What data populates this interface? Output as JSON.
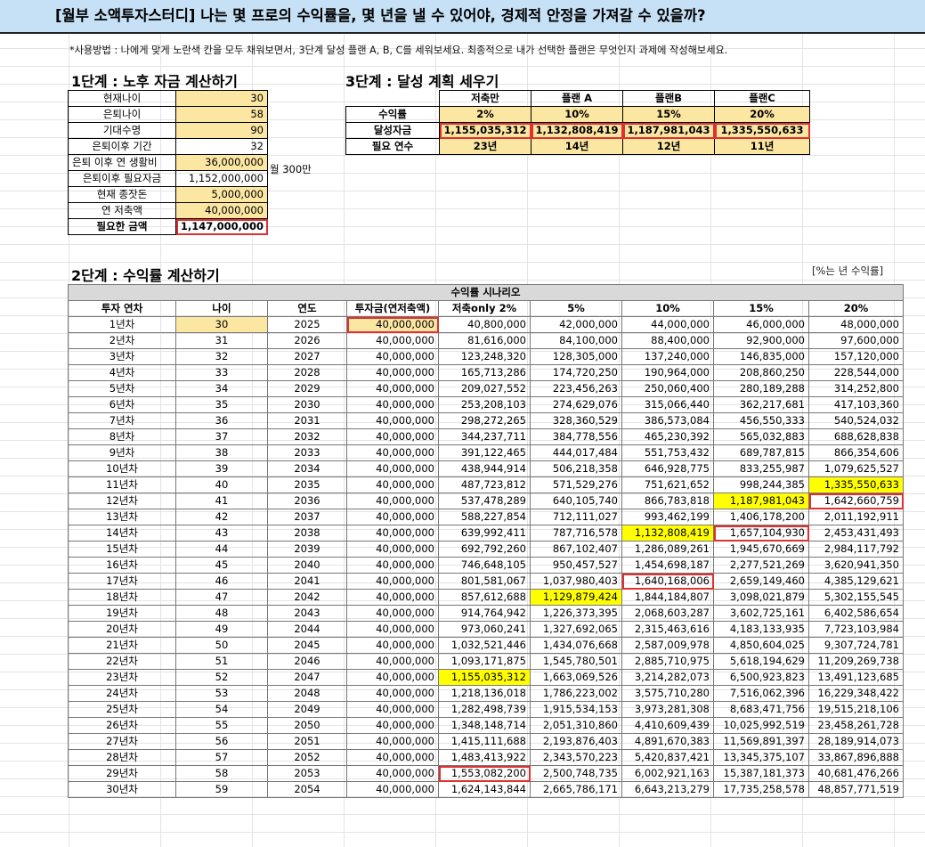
{
  "title": "[월부 소액투자스터디] 나는 몇 프로의 수익률을, 몇 년을 낼 수 있어야, 경제적 안정을 가져갈 수 있을까?",
  "usage": "*사용방법 : 나에게 맞게 노란색 칸을 모두 채워보면서, 3단계 달성 플랜 A, B, C를 세워보세요. 최종적으로 내가 선택한 플랜은 무엇인지 과제에 작성해보세요.",
  "step1": {
    "title": "1단계 : 노후 자금 계산하기",
    "note": "월 300만",
    "rows": [
      {
        "label": "현재나이",
        "value": "30"
      },
      {
        "label": "은퇴나이",
        "value": "58"
      },
      {
        "label": "기대수명",
        "value": "90"
      },
      {
        "label": "은퇴이후 기간",
        "value": "32"
      },
      {
        "label": "은퇴 이후 연 생활비",
        "value": "36,000,000"
      },
      {
        "label": "은퇴이후 필요자금",
        "value": "1,152,000,000"
      },
      {
        "label": "현재 종잣돈",
        "value": "5,000,000"
      },
      {
        "label": "연 저축액",
        "value": "40,000,000"
      },
      {
        "label": "필요한 금액",
        "value": "1,147,000,000"
      }
    ]
  },
  "step3": {
    "title": "3단계 : 달성 계획 세우기",
    "headers": [
      "저축만",
      "플랜 A",
      "플랜B",
      "플랜C"
    ],
    "rows": [
      {
        "label": "수익률",
        "values": [
          "2%",
          "10%",
          "15%",
          "20%"
        ]
      },
      {
        "label": "달성자금",
        "values": [
          "1,155,035,312",
          "1,132,808,419",
          "1,187,981,043",
          "1,335,550,633"
        ]
      },
      {
        "label": "필요 연수",
        "values": [
          "23년",
          "14년",
          "12년",
          "11년"
        ]
      }
    ]
  },
  "step2": {
    "title": "2단계 : 수익률 계산하기",
    "unit_note": "[%는 년 수익률]",
    "scenario_header": "수익률 시나리오",
    "columns": [
      "투자 연차",
      "나이",
      "연도",
      "투자금(연저축액)",
      "저축only 2%",
      "5%",
      "10%",
      "15%",
      "20%"
    ],
    "rows": [
      [
        "1년차",
        "30",
        "2025",
        "40,000,000",
        "40,800,000",
        "42,000,000",
        "44,000,000",
        "46,000,000",
        "48,000,000"
      ],
      [
        "2년차",
        "31",
        "2026",
        "40,000,000",
        "81,616,000",
        "84,100,000",
        "88,400,000",
        "92,900,000",
        "97,600,000"
      ],
      [
        "3년차",
        "32",
        "2027",
        "40,000,000",
        "123,248,320",
        "128,305,000",
        "137,240,000",
        "146,835,000",
        "157,120,000"
      ],
      [
        "4년차",
        "33",
        "2028",
        "40,000,000",
        "165,713,286",
        "174,720,250",
        "190,964,000",
        "208,860,250",
        "228,544,000"
      ],
      [
        "5년차",
        "34",
        "2029",
        "40,000,000",
        "209,027,552",
        "223,456,263",
        "250,060,400",
        "280,189,288",
        "314,252,800"
      ],
      [
        "6년차",
        "35",
        "2030",
        "40,000,000",
        "253,208,103",
        "274,629,076",
        "315,066,440",
        "362,217,681",
        "417,103,360"
      ],
      [
        "7년차",
        "36",
        "2031",
        "40,000,000",
        "298,272,265",
        "328,360,529",
        "386,573,084",
        "456,550,333",
        "540,524,032"
      ],
      [
        "8년차",
        "37",
        "2032",
        "40,000,000",
        "344,237,711",
        "384,778,556",
        "465,230,392",
        "565,032,883",
        "688,628,838"
      ],
      [
        "9년차",
        "38",
        "2033",
        "40,000,000",
        "391,122,465",
        "444,017,484",
        "551,753,432",
        "689,787,815",
        "866,354,606"
      ],
      [
        "10년차",
        "39",
        "2034",
        "40,000,000",
        "438,944,914",
        "506,218,358",
        "646,928,775",
        "833,255,987",
        "1,079,625,527"
      ],
      [
        "11년차",
        "40",
        "2035",
        "40,000,000",
        "487,723,812",
        "571,529,276",
        "751,621,652",
        "998,244,385",
        "1,335,550,633"
      ],
      [
        "12년차",
        "41",
        "2036",
        "40,000,000",
        "537,478,289",
        "640,105,740",
        "866,783,818",
        "1,187,981,043",
        "1,642,660,759"
      ],
      [
        "13년차",
        "42",
        "2037",
        "40,000,000",
        "588,227,854",
        "712,111,027",
        "993,462,199",
        "1,406,178,200",
        "2,011,192,911"
      ],
      [
        "14년차",
        "43",
        "2038",
        "40,000,000",
        "639,992,411",
        "787,716,578",
        "1,132,808,419",
        "1,657,104,930",
        "2,453,431,493"
      ],
      [
        "15년차",
        "44",
        "2039",
        "40,000,000",
        "692,792,260",
        "867,102,407",
        "1,286,089,261",
        "1,945,670,669",
        "2,984,117,792"
      ],
      [
        "16년차",
        "45",
        "2040",
        "40,000,000",
        "746,648,105",
        "950,457,527",
        "1,454,698,187",
        "2,277,521,269",
        "3,620,941,350"
      ],
      [
        "17년차",
        "46",
        "2041",
        "40,000,000",
        "801,581,067",
        "1,037,980,403",
        "1,640,168,006",
        "2,659,149,460",
        "4,385,129,621"
      ],
      [
        "18년차",
        "47",
        "2042",
        "40,000,000",
        "857,612,688",
        "1,129,879,424",
        "1,844,184,807",
        "3,098,021,879",
        "5,302,155,545"
      ],
      [
        "19년차",
        "48",
        "2043",
        "40,000,000",
        "914,764,942",
        "1,226,373,395",
        "2,068,603,287",
        "3,602,725,161",
        "6,402,586,654"
      ],
      [
        "20년차",
        "49",
        "2044",
        "40,000,000",
        "973,060,241",
        "1,327,692,065",
        "2,315,463,616",
        "4,183,133,935",
        "7,723,103,984"
      ],
      [
        "21년차",
        "50",
        "2045",
        "40,000,000",
        "1,032,521,446",
        "1,434,076,668",
        "2,587,009,978",
        "4,850,604,025",
        "9,307,724,781"
      ],
      [
        "22년차",
        "51",
        "2046",
        "40,000,000",
        "1,093,171,875",
        "1,545,780,501",
        "2,885,710,975",
        "5,618,194,629",
        "11,209,269,738"
      ],
      [
        "23년차",
        "52",
        "2047",
        "40,000,000",
        "1,155,035,312",
        "1,663,069,526",
        "3,214,282,073",
        "6,500,923,823",
        "13,491,123,685"
      ],
      [
        "24년차",
        "53",
        "2048",
        "40,000,000",
        "1,218,136,018",
        "1,786,223,002",
        "3,575,710,280",
        "7,516,062,396",
        "16,229,348,422"
      ],
      [
        "25년차",
        "54",
        "2049",
        "40,000,000",
        "1,282,498,739",
        "1,915,534,153",
        "3,973,281,308",
        "8,683,471,756",
        "19,515,218,106"
      ],
      [
        "26년차",
        "55",
        "2050",
        "40,000,000",
        "1,348,148,714",
        "2,051,310,860",
        "4,410,609,439",
        "10,025,992,519",
        "23,458,261,728"
      ],
      [
        "27년차",
        "56",
        "2051",
        "40,000,000",
        "1,415,111,688",
        "2,193,876,403",
        "4,891,670,383",
        "11,569,891,397",
        "28,189,914,073"
      ],
      [
        "28년차",
        "57",
        "2052",
        "40,000,000",
        "1,483,413,922",
        "2,343,570,223",
        "5,420,837,421",
        "13,345,375,107",
        "33,867,896,888"
      ],
      [
        "29년차",
        "58",
        "2053",
        "40,000,000",
        "1,553,082,200",
        "2,500,748,735",
        "6,002,921,163",
        "15,387,181,373",
        "40,681,476,266"
      ],
      [
        "30년차",
        "59",
        "2054",
        "40,000,000",
        "1,624,143,844",
        "2,665,786,171",
        "6,643,213,279",
        "17,735,258,578",
        "48,857,771,519"
      ]
    ]
  },
  "colors": {
    "title_bg": "#c6e1f5",
    "input_yellow": "#fbe6a2",
    "highlight_yellow": "#ffff00",
    "red_border": "#e03030",
    "scenario_gray": "#d9d9d9"
  }
}
